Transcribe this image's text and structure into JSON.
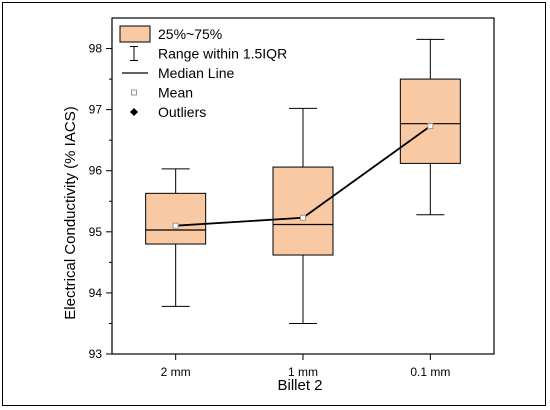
{
  "chart_data": {
    "type": "box",
    "xlabel": "Billet 2",
    "ylabel": "Electrical Conductivity (% IACS)",
    "ylim": [
      93,
      98.5
    ],
    "yticks": [
      93,
      94,
      95,
      96,
      97,
      98
    ],
    "categories": [
      "2 mm",
      "1 mm",
      "0.1 mm"
    ],
    "boxes": [
      {
        "category": "2 mm",
        "whisker_low": 93.78,
        "q1": 94.8,
        "median": 95.03,
        "q3": 95.63,
        "whisker_high": 96.03,
        "mean": 95.1
      },
      {
        "category": "1 mm",
        "whisker_low": 93.5,
        "q1": 94.62,
        "median": 95.12,
        "q3": 96.06,
        "whisker_high": 97.02,
        "mean": 95.23
      },
      {
        "category": "0.1 mm",
        "whisker_low": 95.28,
        "q1": 96.12,
        "median": 96.77,
        "q3": 97.5,
        "whisker_high": 98.15,
        "mean": 96.73
      }
    ],
    "mean_line": true,
    "legend": {
      "placement": "top-left",
      "entries": [
        "25%~75%",
        "Range within 1.5IQR",
        "Median Line",
        "Mean",
        "Outliers"
      ]
    },
    "colors": {
      "box_fill": "#F9C9A3",
      "box_stroke": "#000000",
      "mean_marker": "#999999"
    }
  }
}
